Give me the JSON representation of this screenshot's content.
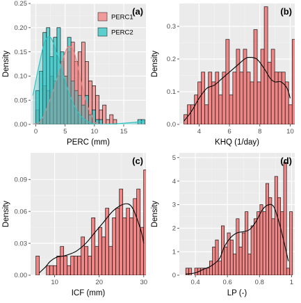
{
  "colors": {
    "panel_bg": "#ebebeb",
    "grid_major": "#ffffff",
    "grid_minor": "#f4f4f4",
    "perc1_fill": "#f08080",
    "perc2_fill": "#2ec4c4",
    "bar_stroke": "#111111",
    "density_line": "#000000",
    "text": "#4d4d4d",
    "label_text": "#000000"
  },
  "chart_data": [
    {
      "id": "a",
      "type": "bar",
      "panel_label": "(a)",
      "xlabel": "PERC (mm)",
      "ylabel": "Density",
      "xlim": [
        -0.9,
        18.8
      ],
      "ylim": [
        0,
        0.25
      ],
      "xticks": [
        0,
        5,
        10,
        15
      ],
      "yticks": [
        0.0,
        0.05,
        0.1,
        0.15,
        0.2,
        0.25
      ],
      "ytick_labels": [
        "0.00",
        "0.05",
        "0.10",
        "0.15",
        "0.20",
        "0.25"
      ],
      "legend_position": "top-right",
      "series": [
        {
          "name": "PERC1",
          "color_key": "perc1_fill",
          "bin_start": 0.0,
          "bin_width": 0.6,
          "values": [
            0.03,
            0.01,
            0.08,
            0.07,
            0.1,
            0.09,
            0.1,
            0.13,
            0.1,
            0.15,
            0.17,
            0.13,
            0.15,
            0.17,
            0.13,
            0.09,
            0.08,
            0.06,
            0.03,
            0.04,
            0.01,
            0.02,
            0.01,
            0.0,
            0.0,
            0.0,
            0.0,
            0.0,
            0.0,
            0.0,
            0.0
          ],
          "density": [
            [
              -0.5,
              0.0
            ],
            [
              1,
              0.01
            ],
            [
              3,
              0.07
            ],
            [
              4.5,
              0.13
            ],
            [
              5.5,
              0.16
            ],
            [
              6.5,
              0.15
            ],
            [
              7.5,
              0.1
            ],
            [
              8.5,
              0.05
            ],
            [
              9.5,
              0.02
            ],
            [
              11,
              0.0
            ],
            [
              18.5,
              0.0
            ]
          ]
        },
        {
          "name": "PERC2",
          "color_key": "perc2_fill",
          "bin_start": 0.0,
          "bin_width": 0.6,
          "values": [
            0.07,
            0.11,
            0.19,
            0.2,
            0.14,
            0.18,
            0.2,
            0.15,
            0.1,
            0.18,
            0.09,
            0.07,
            0.06,
            0.04,
            0.06,
            0.02,
            0.03,
            0.01,
            0.01,
            0.0,
            0.0,
            0.0,
            0.0,
            0.0,
            0.0,
            0.0,
            0.0,
            0.0,
            0.0,
            0.01,
            0.01
          ],
          "density": [
            [
              -0.5,
              0.06
            ],
            [
              0.5,
              0.12
            ],
            [
              1.5,
              0.17
            ],
            [
              2.5,
              0.18
            ],
            [
              3.5,
              0.15
            ],
            [
              4.5,
              0.11
            ],
            [
              5.5,
              0.07
            ],
            [
              6.5,
              0.04
            ],
            [
              7.5,
              0.02
            ],
            [
              9,
              0.005
            ],
            [
              11,
              0.0
            ],
            [
              17.5,
              0.005
            ],
            [
              18.5,
              0.01
            ]
          ]
        }
      ]
    },
    {
      "id": "b",
      "type": "bar",
      "panel_label": "(b)",
      "xlabel": "KHQ (1/day)",
      "ylabel": "Density",
      "xlim": [
        2.7,
        10.3
      ],
      "ylim": [
        0,
        0.37
      ],
      "xticks": [
        4,
        6,
        8,
        10
      ],
      "yticks": [
        0.0,
        0.1,
        0.2,
        0.3
      ],
      "ytick_labels": [
        "0.0",
        "0.1",
        "0.2",
        "0.3"
      ],
      "series": [
        {
          "name": "",
          "color_key": "perc1_fill",
          "bin_start": 3.0,
          "bin_width": 0.23,
          "values": [
            0.03,
            0.06,
            0.06,
            0.09,
            0.13,
            0.16,
            0.06,
            0.16,
            0.13,
            0.16,
            0.09,
            0.16,
            0.26,
            0.09,
            0.16,
            0.23,
            0.16,
            0.23,
            0.16,
            0.13,
            0.29,
            0.13,
            0.23,
            0.36,
            0.19,
            0.23,
            0.16,
            0.16,
            0.16,
            0.13,
            0.06,
            0.26,
            0.13
          ],
          "density": [
            [
              3.0,
              0.01
            ],
            [
              3.5,
              0.04
            ],
            [
              4.0,
              0.08
            ],
            [
              4.5,
              0.11
            ],
            [
              5.0,
              0.12
            ],
            [
              5.5,
              0.14
            ],
            [
              6.0,
              0.16
            ],
            [
              6.5,
              0.18
            ],
            [
              7.0,
              0.2
            ],
            [
              7.3,
              0.205
            ],
            [
              7.8,
              0.2
            ],
            [
              8.3,
              0.17
            ],
            [
              8.7,
              0.14
            ],
            [
              9.0,
              0.13
            ],
            [
              9.4,
              0.13
            ],
            [
              9.8,
              0.11
            ],
            [
              10.0,
              0.08
            ]
          ]
        }
      ]
    },
    {
      "id": "c",
      "type": "bar",
      "panel_label": "(c)",
      "xlabel": "ICF (mm)",
      "ylabel": "Density",
      "xlim": [
        4.6,
        30.5
      ],
      "ylim": [
        0,
        0.115
      ],
      "xticks": [
        10,
        20,
        30
      ],
      "yticks": [
        0.0,
        0.03,
        0.06,
        0.09
      ],
      "ytick_labels": [
        "0.00",
        "0.03",
        "0.06",
        "0.09"
      ],
      "series": [
        {
          "name": "",
          "color_key": "perc1_fill",
          "bin_start": 5.8,
          "bin_width": 0.78,
          "values": [
            0.018,
            0.0,
            0.0,
            0.009,
            0.009,
            0.009,
            0.018,
            0.027,
            0.018,
            0.009,
            0.018,
            0.018,
            0.018,
            0.036,
            0.027,
            0.018,
            0.054,
            0.027,
            0.045,
            0.036,
            0.063,
            0.027,
            0.054,
            0.063,
            0.081,
            0.054,
            0.063,
            0.054,
            0.072,
            0.081,
            0.045,
            0.099,
            0.09,
            0.07,
            0.036
          ],
          "density": [
            [
              6.5,
              0.002
            ],
            [
              8,
              0.008
            ],
            [
              9,
              0.013
            ],
            [
              10.5,
              0.017
            ],
            [
              12,
              0.018
            ],
            [
              13.5,
              0.02
            ],
            [
              15,
              0.023
            ],
            [
              17,
              0.03
            ],
            [
              19,
              0.04
            ],
            [
              21,
              0.05
            ],
            [
              23,
              0.06
            ],
            [
              25,
              0.066
            ],
            [
              26.5,
              0.067
            ],
            [
              27.5,
              0.063
            ],
            [
              28.5,
              0.053
            ],
            [
              29.5,
              0.04
            ],
            [
              30.0,
              0.03
            ]
          ]
        }
      ]
    },
    {
      "id": "d",
      "type": "bar",
      "panel_label": "(d)",
      "xlabel": "LP (-)",
      "ylabel": "Density",
      "xlim": [
        0.3,
        1.02
      ],
      "ylim": [
        0,
        5.2
      ],
      "xticks": [
        0.4,
        0.6,
        0.8,
        1.0
      ],
      "yticks": [
        0,
        1,
        2,
        3,
        4,
        5
      ],
      "ytick_labels": [
        "0",
        "1",
        "2",
        "3",
        "4",
        "5"
      ],
      "series": [
        {
          "name": "",
          "color_key": "perc1_fill",
          "bin_start": 0.34,
          "bin_width": 0.0185,
          "values": [
            0.3,
            0.3,
            0.0,
            0.3,
            0.3,
            0.3,
            0.3,
            0.3,
            0.6,
            1.2,
            1.5,
            0.6,
            2.1,
            1.2,
            1.8,
            1.5,
            0.9,
            2.4,
            1.2,
            1.8,
            2.7,
            0.9,
            2.1,
            2.4,
            2.7,
            3.0,
            2.7,
            3.9,
            3.3,
            2.4,
            4.2,
            3.3,
            2.7,
            4.8,
            0.3,
            2.7
          ],
          "density": [
            [
              0.34,
              0.05
            ],
            [
              0.4,
              0.1
            ],
            [
              0.45,
              0.25
            ],
            [
              0.5,
              0.4
            ],
            [
              0.55,
              0.7
            ],
            [
              0.58,
              1.2
            ],
            [
              0.62,
              1.6
            ],
            [
              0.66,
              1.8
            ],
            [
              0.7,
              1.85
            ],
            [
              0.74,
              1.95
            ],
            [
              0.78,
              2.3
            ],
            [
              0.82,
              2.8
            ],
            [
              0.86,
              3.0
            ],
            [
              0.89,
              2.9
            ],
            [
              0.92,
              2.3
            ],
            [
              0.95,
              1.5
            ],
            [
              0.98,
              0.6
            ]
          ]
        }
      ]
    }
  ]
}
